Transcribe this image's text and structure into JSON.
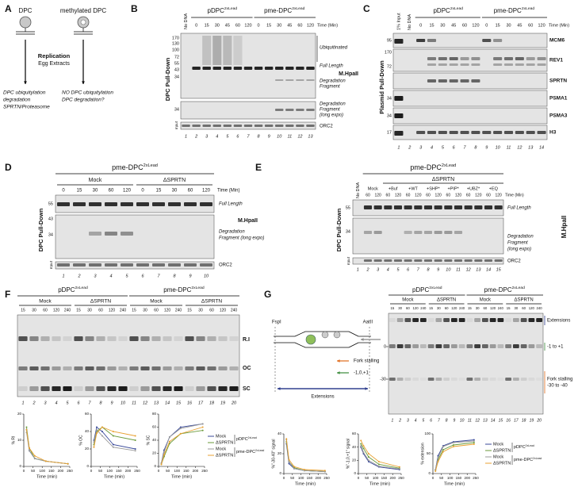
{
  "panel_a": {
    "letter": "A",
    "dpc": "DPC",
    "methylated_dpc": "methylated DPC",
    "replication": "Replication",
    "extracts": "Egg Extracts",
    "left_outcome": [
      "DPC ubiquitylation",
      "degradation",
      "SPRTN/Proteasome"
    ],
    "right_outcome": [
      "NO DPC ubiquitylation",
      "DPC degradation?"
    ]
  },
  "panel_b": {
    "letter": "B",
    "no_dna": "No DNA",
    "groups": [
      {
        "base": "pDPC",
        "sup": "2xLead"
      },
      {
        "base": "pme-DPC",
        "sup": "2xLead"
      }
    ],
    "times": [
      0,
      15,
      30,
      45,
      60,
      120,
      0,
      15,
      30,
      45,
      60,
      120
    ],
    "time_label": "Time (Min)",
    "side_label": "DPC Pull-Down",
    "mw": [
      170,
      130,
      100,
      72,
      55,
      43,
      34
    ],
    "mw_long": [
      34
    ],
    "ubiquitinated": "Ubiquitinated",
    "full_length": "Full Length",
    "fragment": [
      "Degradation",
      "Fragment"
    ],
    "fragment_long": [
      "Degradation",
      "Fragment",
      "(long expo)"
    ],
    "protein": "M.HpaII",
    "input": "Input",
    "loading": "ORC2",
    "lanes": [
      1,
      2,
      3,
      4,
      5,
      6,
      7,
      8,
      9,
      10,
      11,
      12,
      13
    ]
  },
  "panel_c": {
    "letter": "C",
    "input_lane": "1% Input",
    "no_dna": "No DNA",
    "groups": [
      {
        "base": "pDPC",
        "sup": "2xLead"
      },
      {
        "base": "pme-DPC",
        "sup": "2xLead"
      }
    ],
    "times": [
      0,
      15,
      30,
      45,
      60,
      120,
      0,
      15,
      30,
      45,
      60,
      120
    ],
    "time_label": "Time (Min)",
    "side_label": "Plasmid Pull-Down",
    "proteins": [
      "MCM6",
      "REV1",
      "SPRTN",
      "PSMA1",
      "PSMA3",
      "H3"
    ],
    "mw": [
      95,
      170,
      72,
      34,
      34,
      17
    ],
    "lanes": [
      1,
      2,
      3,
      4,
      5,
      6,
      7,
      8,
      9,
      10,
      11,
      12,
      13,
      14
    ]
  },
  "panel_d": {
    "letter": "D",
    "group": {
      "base": "pme-DPC",
      "sup": "2xLead"
    },
    "conditions": [
      "Mock",
      "ΔSPRTN"
    ],
    "times": [
      0,
      15,
      30,
      60,
      120,
      0,
      15,
      30,
      60,
      120
    ],
    "time_label": "Time (Min)",
    "side_label": "DPC Pull-Down",
    "mw": [
      55,
      43,
      34
    ],
    "full_length": "Full Length",
    "fragment": [
      "Degradation",
      "Fragment (long expo)"
    ],
    "protein": "M.HpaII",
    "input": "Input",
    "loading": "ORC2",
    "lanes": [
      1,
      2,
      3,
      4,
      5,
      6,
      7,
      8,
      9,
      10
    ]
  },
  "panel_e": {
    "letter": "E",
    "group": {
      "base": "pme-DPC",
      "sup": "2xLead"
    },
    "subgroup": "ΔSPRTN",
    "no_dna": "No DNA",
    "conditions": [
      "Mock",
      "+Buf",
      "+WT",
      "+SHP*",
      "+PIP*",
      "+UBZ*",
      "+EQ"
    ],
    "times": [
      60,
      120,
      60,
      120,
      60,
      120,
      60,
      120,
      60,
      120,
      60,
      120,
      60,
      120
    ],
    "time_label": "Time (Min)",
    "side_label": "DPC Pull-Down",
    "mw": [
      55,
      34
    ],
    "full_length": "Full Length",
    "fragment_long": [
      "Degradation",
      "Fragment",
      "(long expo)"
    ],
    "protein": "M.HpaII",
    "input": "Input",
    "loading": "ORC2",
    "lanes": [
      1,
      2,
      3,
      4,
      5,
      6,
      7,
      8,
      9,
      10,
      11,
      12,
      13,
      14,
      15
    ]
  },
  "panel_f": {
    "letter": "F",
    "groups": [
      {
        "base": "pDPC",
        "sup": "2xLead"
      },
      {
        "base": "pme-DPC",
        "sup": "2xLead"
      }
    ],
    "conditions": [
      "Mock",
      "ΔSPRTN",
      "Mock",
      "ΔSPRTN"
    ],
    "times": [
      15,
      30,
      60,
      120,
      240,
      15,
      30,
      60,
      120,
      240,
      15,
      30,
      60,
      120,
      240,
      15,
      30,
      60,
      120,
      240
    ],
    "species": [
      "R.I",
      "OC",
      "SC"
    ],
    "lanes": [
      1,
      2,
      3,
      4,
      5,
      6,
      7,
      8,
      9,
      10,
      11,
      12,
      13,
      14,
      15,
      16,
      17,
      18,
      19,
      20
    ]
  },
  "panel_g": {
    "letter": "G",
    "diagram": {
      "left_site": "FspI",
      "right_site": "AatII",
      "fork_stalling": "Fork stalling",
      "inserted": "-1,0,+1",
      "extensions": "Extensions"
    },
    "groups": [
      {
        "base": "pDPC",
        "sup": "2xLead"
      },
      {
        "base": "pme-DPC",
        "sup": "2xLead"
      }
    ],
    "conditions": [
      "Mock",
      "ΔSPRTN",
      "Mock",
      "ΔSPRTN"
    ],
    "times": [
      15,
      30,
      60,
      120,
      240,
      15,
      30,
      60,
      120,
      240,
      15,
      30,
      60,
      120,
      240,
      15,
      30,
      60,
      120,
      240
    ],
    "gel_ticks": [
      0,
      -30
    ],
    "gel_labels": {
      "extensions": "Extensions",
      "insertion": "-1 to +1",
      "stalling": [
        "Fork stalling",
        "-30 to -40"
      ]
    },
    "lanes": [
      1,
      2,
      3,
      4,
      5,
      6,
      7,
      8,
      9,
      10,
      11,
      12,
      13,
      14,
      15,
      16,
      17,
      18,
      19,
      20
    ]
  },
  "chart_data": [
    {
      "type": "line",
      "ylabel": "% RI",
      "xlabel": "Time (min)",
      "x": [
        15,
        30,
        60,
        120,
        240
      ],
      "xlim": [
        0,
        250
      ],
      "xticks": [
        0,
        50,
        100,
        150,
        200,
        250
      ],
      "ylim": [
        0,
        20
      ],
      "yticks": [
        0,
        10,
        20
      ],
      "series": [
        {
          "color": "#3a4a9a",
          "values": [
            14,
            6,
            3,
            2,
            1
          ]
        },
        {
          "color": "#6a9a3a",
          "values": [
            15,
            7,
            3,
            2,
            1
          ]
        },
        {
          "color": "#9a9a9a",
          "values": [
            13,
            6,
            3,
            2,
            1
          ]
        },
        {
          "color": "#e8a030",
          "values": [
            14,
            7,
            4,
            2,
            1
          ]
        }
      ]
    },
    {
      "type": "line",
      "ylabel": "% OC",
      "xlabel": "Time (min)",
      "x": [
        15,
        30,
        60,
        120,
        240
      ],
      "xlim": [
        0,
        250
      ],
      "xticks": [
        0,
        50,
        100,
        150,
        200,
        250
      ],
      "ylim": [
        0,
        60
      ],
      "yticks": [
        0,
        20,
        40,
        60
      ],
      "series": [
        {
          "color": "#3a4a9a",
          "values": [
            30,
            45,
            40,
            25,
            20
          ]
        },
        {
          "color": "#6a9a3a",
          "values": [
            25,
            40,
            45,
            35,
            30
          ]
        },
        {
          "color": "#9a9a9a",
          "values": [
            28,
            42,
            35,
            22,
            18
          ]
        },
        {
          "color": "#e8a030",
          "values": [
            22,
            38,
            45,
            40,
            35
          ]
        }
      ]
    },
    {
      "type": "line",
      "ylabel": "% SC",
      "xlabel": "Time (min)",
      "x": [
        15,
        30,
        60,
        120,
        240
      ],
      "xlim": [
        0,
        250
      ],
      "xticks": [
        0,
        50,
        100,
        150,
        200,
        250
      ],
      "ylim": [
        0,
        80
      ],
      "yticks": [
        0,
        20,
        40,
        60,
        80
      ],
      "series": [
        {
          "name": "Mock",
          "color": "#3a4a9a",
          "values": [
            5,
            25,
            45,
            60,
            65
          ]
        },
        {
          "name": "ΔSPRTN",
          "color": "#6a9a3a",
          "values": [
            3,
            15,
            35,
            50,
            55
          ]
        },
        {
          "name": "Mock",
          "color": "#9a9a9a",
          "values": [
            5,
            22,
            45,
            58,
            65
          ]
        },
        {
          "name": "ΔSPRTN",
          "color": "#e8a030",
          "values": [
            3,
            18,
            38,
            50,
            60
          ]
        }
      ]
    },
    {
      "type": "line",
      "ylabel": "%\"-30-40\" signal",
      "xlabel": "Time (min)",
      "x": [
        15,
        30,
        60,
        120,
        240
      ],
      "xlim": [
        0,
        250
      ],
      "xticks": [
        0,
        50,
        100,
        150,
        200,
        250
      ],
      "ylim": [
        0,
        40
      ],
      "yticks": [
        0,
        20,
        40
      ],
      "series": [
        {
          "color": "#3a4a9a",
          "values": [
            30,
            10,
            5,
            3,
            2
          ]
        },
        {
          "color": "#6a9a3a",
          "values": [
            32,
            12,
            6,
            3,
            2
          ]
        },
        {
          "color": "#9a9a9a",
          "values": [
            34,
            12,
            5,
            3,
            2
          ]
        },
        {
          "color": "#e8a030",
          "values": [
            35,
            14,
            7,
            4,
            3
          ]
        }
      ]
    },
    {
      "type": "line",
      "ylabel": "%\"-1,0,+1\" signal",
      "xlabel": "Time (min)",
      "x": [
        15,
        30,
        60,
        120,
        240
      ],
      "xlim": [
        0,
        250
      ],
      "xticks": [
        0,
        50,
        100,
        150,
        200,
        250
      ],
      "ylim": [
        0,
        60
      ],
      "yticks": [
        0,
        20,
        40,
        60
      ],
      "series": [
        {
          "color": "#3a4a9a",
          "values": [
            40,
            30,
            18,
            10,
            6
          ]
        },
        {
          "color": "#6a9a3a",
          "values": [
            45,
            38,
            25,
            14,
            8
          ]
        },
        {
          "color": "#9a9a9a",
          "values": [
            42,
            32,
            20,
            11,
            7
          ]
        },
        {
          "color": "#e8a030",
          "values": [
            50,
            42,
            30,
            18,
            10
          ]
        }
      ]
    },
    {
      "type": "line",
      "ylabel": "% extension",
      "xlabel": "Time (min)",
      "x": [
        15,
        30,
        60,
        120,
        240
      ],
      "xlim": [
        0,
        250
      ],
      "xticks": [
        0,
        50,
        100,
        150,
        200,
        250
      ],
      "ylim": [
        0,
        100
      ],
      "yticks": [
        0,
        50,
        100
      ],
      "series": [
        {
          "name": "Mock",
          "color": "#3a4a9a",
          "values": [
            10,
            45,
            70,
            80,
            85
          ]
        },
        {
          "name": "ΔSPRTN",
          "color": "#6a9a3a",
          "values": [
            8,
            35,
            60,
            72,
            78
          ]
        },
        {
          "name": "Mock",
          "color": "#9a9a9a",
          "values": [
            10,
            40,
            68,
            78,
            82
          ]
        },
        {
          "name": "ΔSPRTN",
          "color": "#e8a030",
          "values": [
            6,
            30,
            55,
            68,
            74
          ]
        }
      ]
    }
  ]
}
